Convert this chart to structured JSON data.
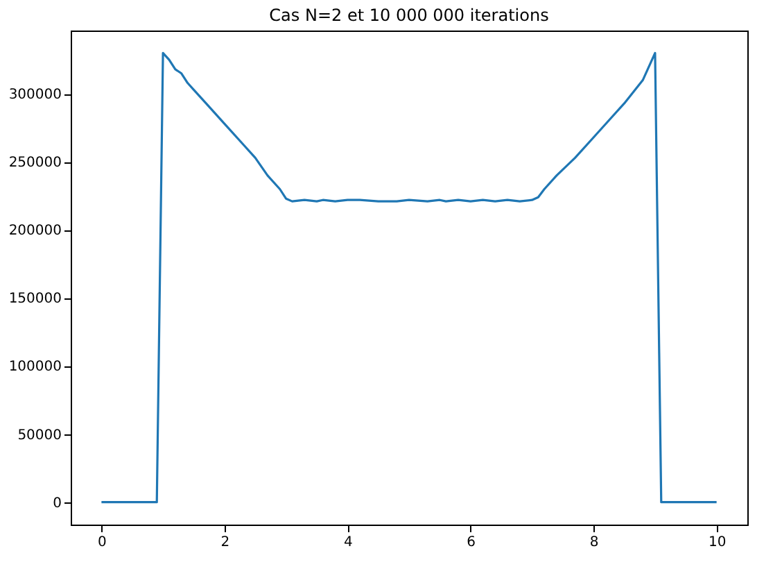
{
  "chart_data": {
    "type": "line",
    "title": "Cas N=2 et 10 000 000 iterations",
    "x": [
      0,
      0.9,
      1.0,
      1.1,
      1.2,
      1.3,
      1.4,
      1.5,
      1.7,
      2.0,
      2.3,
      2.5,
      2.7,
      2.9,
      3.0,
      3.1,
      3.3,
      3.5,
      3.6,
      3.8,
      4.0,
      4.2,
      4.5,
      4.8,
      5.0,
      5.3,
      5.5,
      5.6,
      5.8,
      6.0,
      6.2,
      6.4,
      6.6,
      6.8,
      7.0,
      7.1,
      7.2,
      7.4,
      7.7,
      8.0,
      8.3,
      8.5,
      8.8,
      9.0,
      9.1,
      10.0
    ],
    "series": [
      {
        "color": "#1f77b4",
        "values": [
          0,
          0,
          330000,
          325000,
          318000,
          315000,
          308000,
          303000,
          293000,
          278000,
          263000,
          253000,
          240000,
          230000,
          223000,
          221000,
          222000,
          221000,
          222000,
          221000,
          222000,
          222000,
          221000,
          221000,
          222000,
          221000,
          222000,
          221000,
          222000,
          221000,
          222000,
          221000,
          222000,
          221000,
          222000,
          224000,
          230000,
          240000,
          253000,
          268000,
          283000,
          293000,
          310000,
          330000,
          0,
          0
        ]
      }
    ],
    "xlim": [
      -0.5,
      10.5
    ],
    "ylim": [
      -16500,
      346500
    ],
    "xticks": [
      0,
      2,
      4,
      6,
      8,
      10
    ],
    "yticks": [
      0,
      50000,
      100000,
      150000,
      200000,
      250000,
      300000
    ],
    "grid": false,
    "legend": false,
    "marker": "none",
    "line_style": "solid"
  }
}
